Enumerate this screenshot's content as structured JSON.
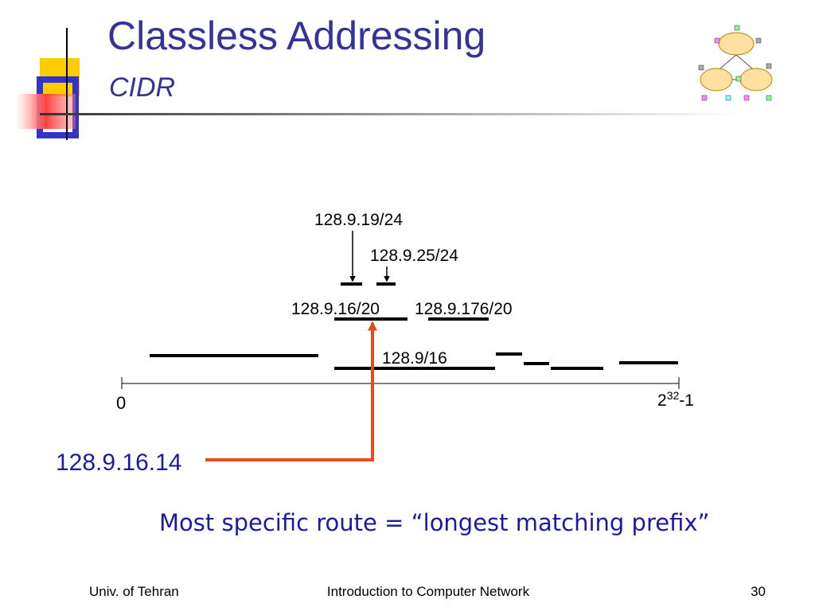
{
  "header": {
    "title": "Classless Addressing",
    "subtitle": "CIDR"
  },
  "diagram": {
    "prefix_a": "128.9.19/24",
    "prefix_b": "128.9.25/24",
    "prefix_c": "128.9.16/20",
    "prefix_d": "128.9.176/20",
    "prefix_e": "128.9/16",
    "axis_start": "0",
    "axis_end": {
      "base": "2",
      "exponent": "32",
      "suffix": "-1"
    },
    "address": "128.9.16.14"
  },
  "caption": "Most specific route = “longest matching prefix”",
  "footer": {
    "left": "Univ. of Tehran",
    "center": "Introduction to Computer Network",
    "right": "30"
  }
}
